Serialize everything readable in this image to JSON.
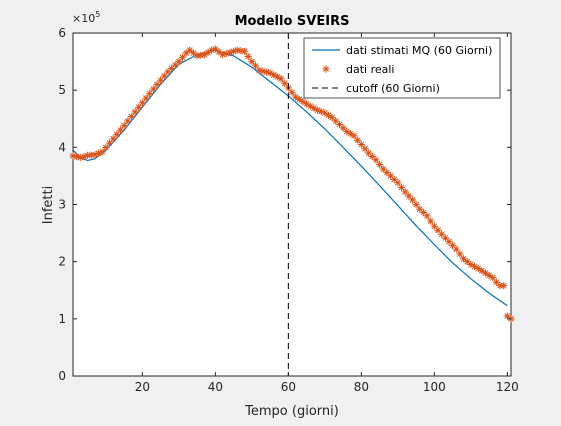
{
  "chart_data": {
    "type": "line",
    "title": "Modello SVEIRS",
    "xlabel": "Tempo (giorni)",
    "ylabel": "Infetti",
    "y_exponent": "×10",
    "y_exponent_power": "5",
    "xlim": [
      1,
      121
    ],
    "ylim": [
      0,
      6
    ],
    "xticks": [
      20,
      40,
      60,
      80,
      100,
      120
    ],
    "yticks": [
      0,
      1,
      2,
      3,
      4,
      5,
      6
    ],
    "grid": false,
    "legend_position": "top-right",
    "legend": [
      {
        "label": "dati stimati MQ (60 Giorni)",
        "style": "line"
      },
      {
        "label": "dati reali",
        "style": "marker"
      },
      {
        "label": "cutoff (60 Giorni)",
        "style": "dashed"
      }
    ],
    "cutoff_x": 60,
    "fit_curve": {
      "x": [
        1,
        3,
        5,
        7,
        10,
        15,
        20,
        25,
        30,
        35,
        40,
        45,
        50,
        55,
        60,
        65,
        70,
        75,
        80,
        85,
        90,
        95,
        100,
        105,
        110,
        115,
        120
      ],
      "y": [
        3.95,
        3.82,
        3.77,
        3.8,
        3.95,
        4.3,
        4.7,
        5.1,
        5.45,
        5.62,
        5.7,
        5.6,
        5.4,
        5.15,
        4.9,
        4.62,
        4.32,
        4.0,
        3.67,
        3.33,
        2.98,
        2.63,
        2.3,
        1.98,
        1.7,
        1.45,
        1.23
      ]
    },
    "colors": {
      "fit": "#0072bd",
      "data": "#d95319",
      "cutoff": "#000000"
    },
    "scatter_keypoints": {
      "x": [
        1,
        3,
        5,
        7,
        9,
        12,
        15,
        18,
        21,
        24,
        27,
        30,
        32,
        33,
        35,
        37,
        39,
        40,
        42,
        44,
        46,
        48,
        50,
        52,
        55,
        58,
        60,
        62,
        64,
        66,
        68,
        70,
        72,
        74,
        76,
        78,
        80,
        82,
        84,
        86,
        88,
        90,
        92,
        94,
        96,
        98,
        100,
        102,
        104,
        106,
        108,
        110,
        112,
        114,
        116,
        117,
        118,
        119,
        120,
        121
      ],
      "y": [
        3.85,
        3.82,
        3.86,
        3.87,
        3.92,
        4.15,
        4.38,
        4.62,
        4.86,
        5.1,
        5.32,
        5.5,
        5.65,
        5.7,
        5.6,
        5.62,
        5.7,
        5.72,
        5.62,
        5.66,
        5.7,
        5.68,
        5.5,
        5.35,
        5.3,
        5.2,
        5.04,
        4.88,
        4.8,
        4.72,
        4.65,
        4.6,
        4.52,
        4.4,
        4.28,
        4.2,
        4.05,
        3.9,
        3.78,
        3.62,
        3.5,
        3.38,
        3.22,
        3.08,
        2.92,
        2.8,
        2.62,
        2.48,
        2.35,
        2.22,
        2.05,
        1.95,
        1.88,
        1.8,
        1.72,
        1.64,
        1.58,
        1.58,
        1.05,
        1.0
      ]
    }
  }
}
